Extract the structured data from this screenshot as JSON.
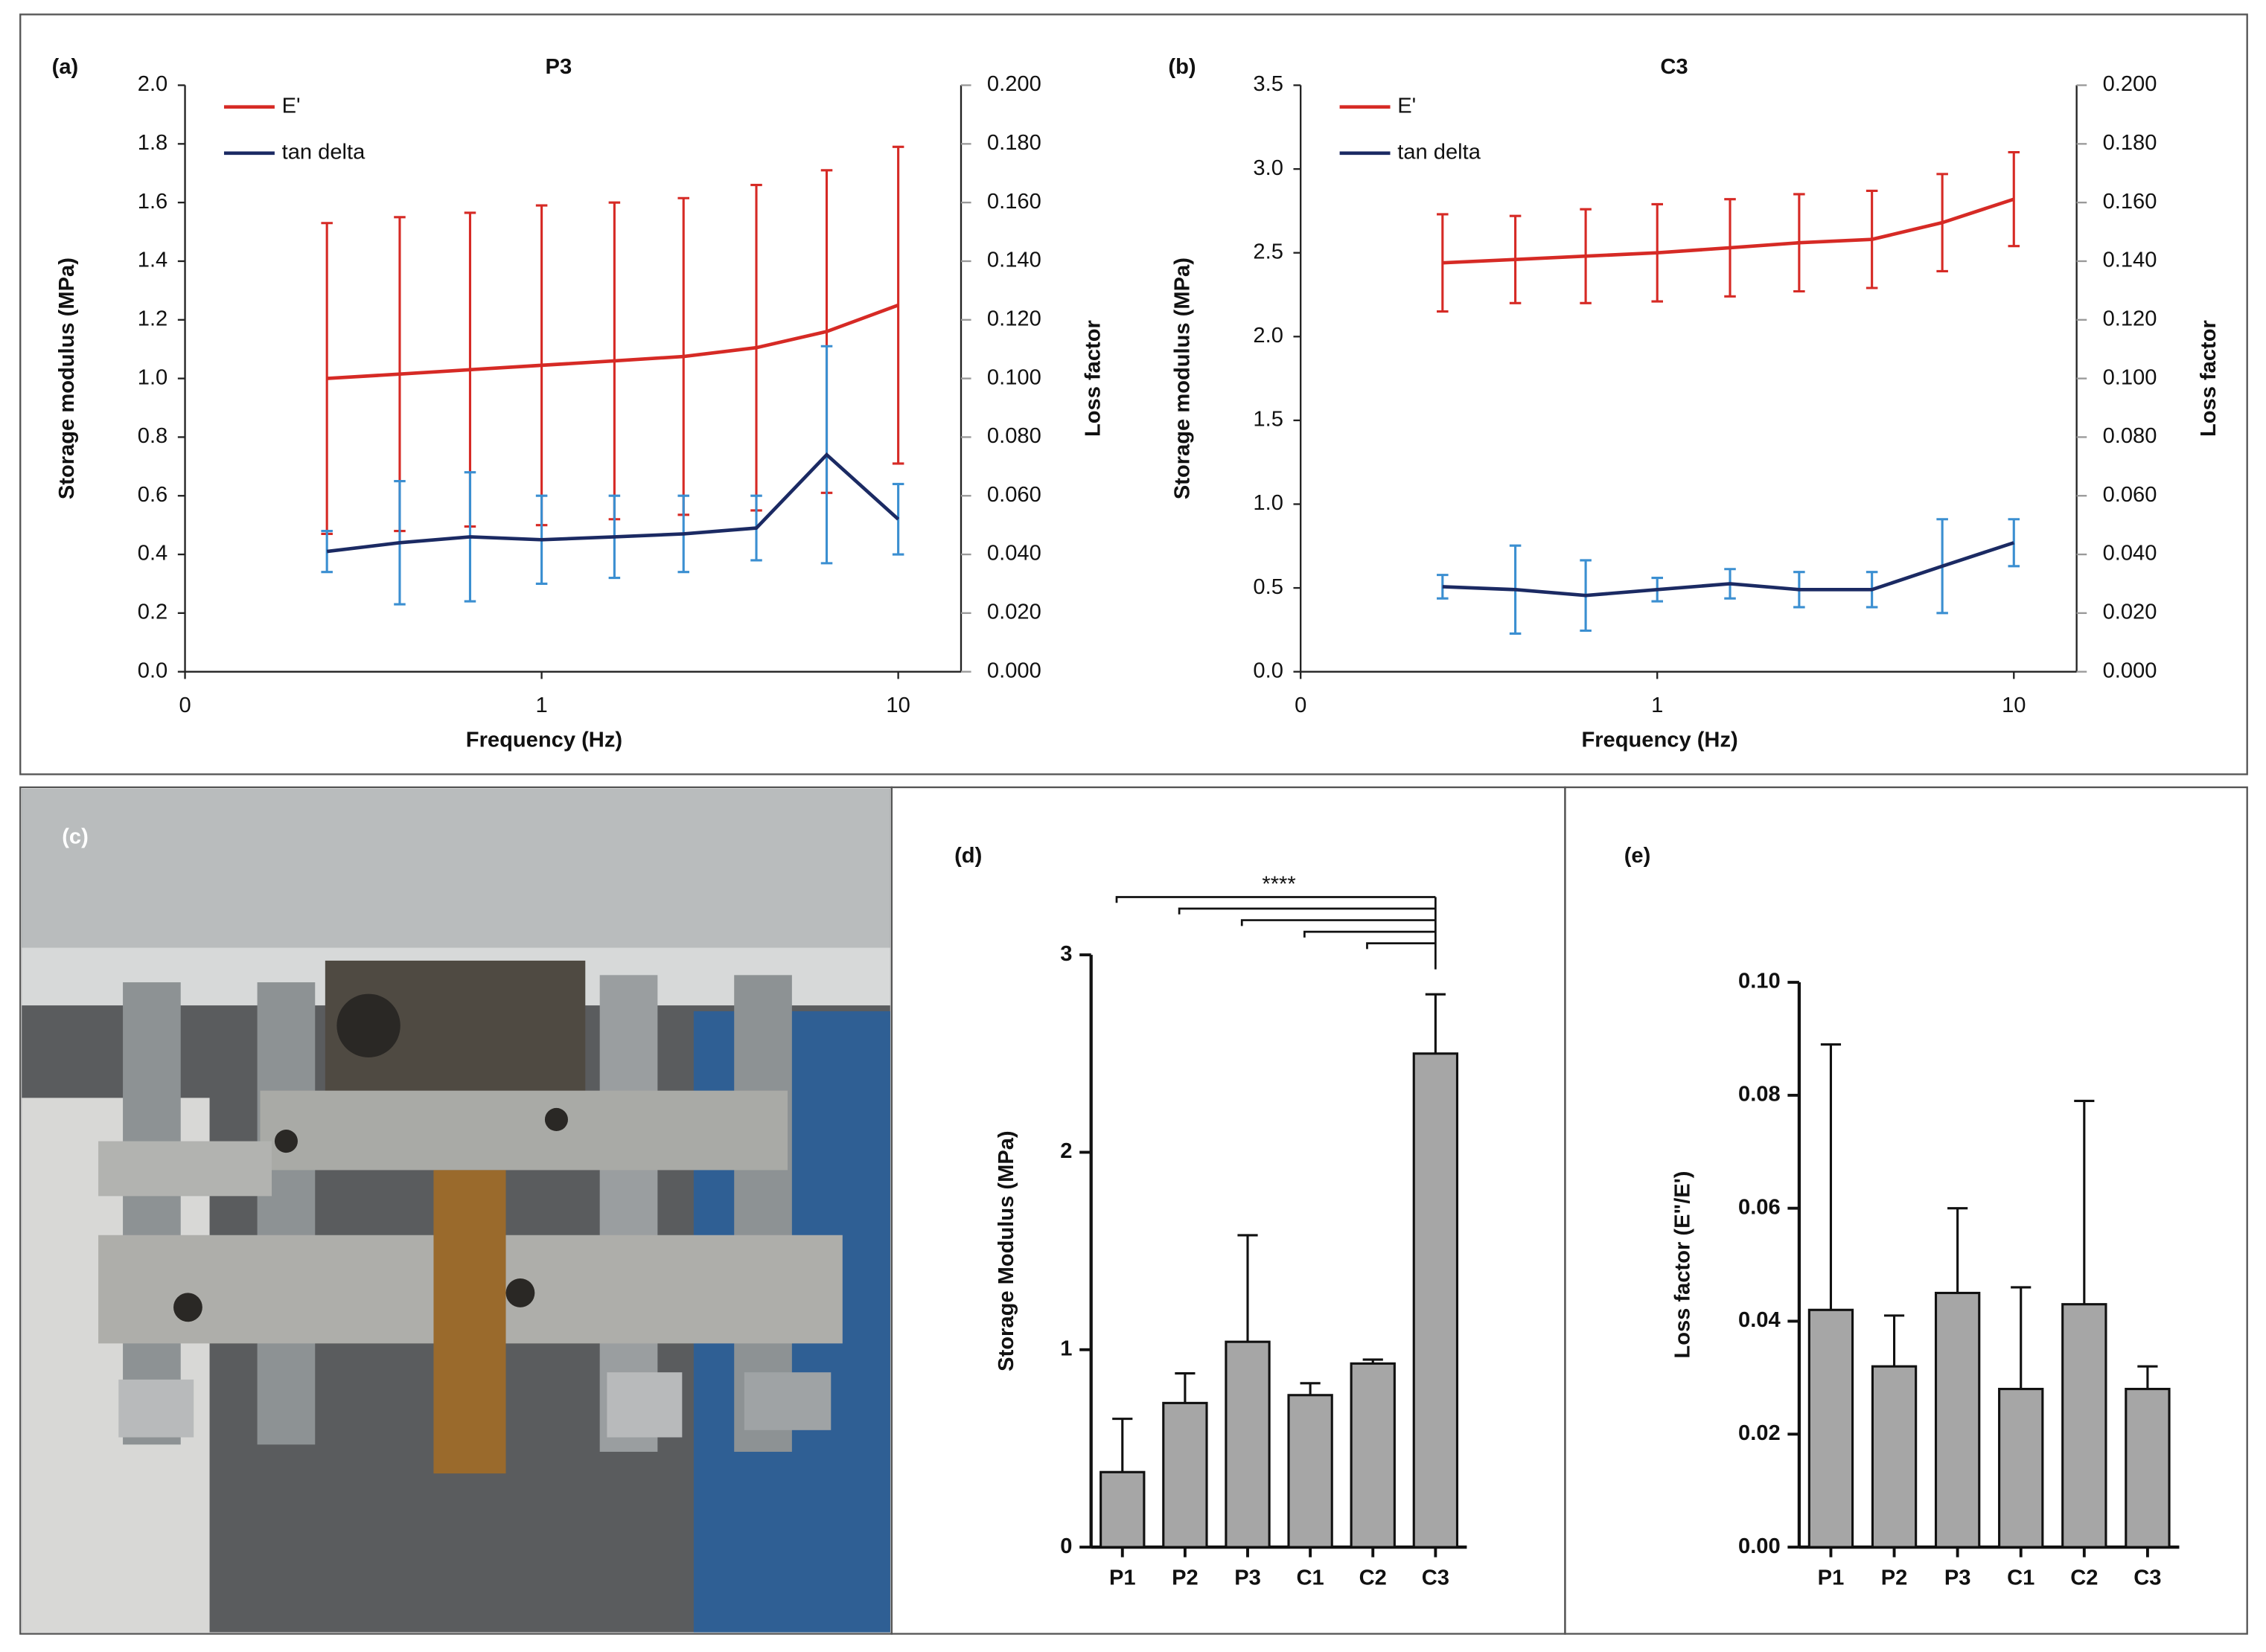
{
  "chart_data": [
    {
      "type": "line",
      "label": "(a)",
      "title": "P3",
      "xlabel": "Frequency (Hz)",
      "ylabel": "Storage modulus (MPa)",
      "y2label": "Loss factor",
      "xscale": "log",
      "legend": "upper left",
      "x": [
        0.25,
        0.4,
        0.63,
        1,
        1.6,
        2.5,
        4,
        6.3,
        10
      ],
      "xlim": [
        0.1,
        15
      ],
      "xticks": [
        {
          "value": 0.1,
          "label": "0"
        },
        1,
        10
      ],
      "ylim": [
        0,
        2
      ],
      "yticks": [
        {
          "value": 0,
          "label": "0.0"
        },
        0.2,
        0.4,
        0.6,
        0.8,
        {
          "value": 1,
          "label": "1.0"
        },
        1.2,
        1.4,
        1.6,
        1.8,
        {
          "value": 2,
          "label": "2.0"
        }
      ],
      "y2lim": [
        0,
        0.2
      ],
      "y2ticks": [
        {
          "value": 0,
          "label": "0.000"
        },
        {
          "value": 0.02,
          "label": "0.020"
        },
        {
          "value": 0.04,
          "label": "0.040"
        },
        {
          "value": 0.06,
          "label": "0.060"
        },
        {
          "value": 0.08,
          "label": "0.080"
        },
        {
          "value": 0.1,
          "label": "0.100"
        },
        {
          "value": 0.12,
          "label": "0.120"
        },
        {
          "value": 0.14,
          "label": "0.140"
        },
        {
          "value": 0.16,
          "label": "0.160"
        },
        {
          "value": 0.18,
          "label": "0.180"
        },
        {
          "value": 0.2,
          "label": "0.200"
        }
      ],
      "series": [
        {
          "name": "E'",
          "color": "#d62a25",
          "error_color": "#d62a25",
          "values": [
            1.0,
            1.015,
            1.03,
            1.045,
            1.06,
            1.075,
            1.105,
            1.16,
            1.25
          ],
          "errors": [
            0.53,
            0.535,
            0.535,
            0.545,
            0.54,
            0.54,
            0.555,
            0.55,
            0.54
          ]
        },
        {
          "name": "tan delta",
          "axis": "y2",
          "color": "#1b2a63",
          "error_color": "#3b8fd1",
          "values": [
            0.041,
            0.044,
            0.046,
            0.045,
            0.046,
            0.047,
            0.049,
            0.074,
            0.052
          ],
          "errors": [
            0.007,
            0.021,
            0.022,
            0.015,
            0.014,
            0.013,
            0.011,
            0.037,
            0.012
          ]
        }
      ]
    },
    {
      "type": "line",
      "label": "(b)",
      "title": "C3",
      "xlabel": "Frequency (Hz)",
      "ylabel": "Storage modulus (MPa)",
      "y2label": "Loss factor",
      "xscale": "log",
      "legend": "upper left",
      "x": [
        0.25,
        0.4,
        0.63,
        1,
        1.6,
        2.5,
        4,
        6.3,
        10
      ],
      "xlim": [
        0.1,
        15
      ],
      "xticks": [
        {
          "value": 0.1,
          "label": "0"
        },
        1,
        10
      ],
      "ylim": [
        0,
        3.5
      ],
      "yticks": [
        {
          "value": 0,
          "label": "0.0"
        },
        0.5,
        {
          "value": 1,
          "label": "1.0"
        },
        1.5,
        {
          "value": 2,
          "label": "2.0"
        },
        2.5,
        {
          "value": 3,
          "label": "3.0"
        },
        3.5
      ],
      "y2lim": [
        0,
        0.2
      ],
      "y2ticks": [
        {
          "value": 0,
          "label": "0.000"
        },
        {
          "value": 0.02,
          "label": "0.020"
        },
        {
          "value": 0.04,
          "label": "0.040"
        },
        {
          "value": 0.06,
          "label": "0.060"
        },
        {
          "value": 0.08,
          "label": "0.080"
        },
        {
          "value": 0.1,
          "label": "0.100"
        },
        {
          "value": 0.12,
          "label": "0.120"
        },
        {
          "value": 0.14,
          "label": "0.140"
        },
        {
          "value": 0.16,
          "label": "0.160"
        },
        {
          "value": 0.18,
          "label": "0.180"
        },
        {
          "value": 0.2,
          "label": "0.200"
        }
      ],
      "series": [
        {
          "name": "E'",
          "color": "#d62a25",
          "error_color": "#d62a25",
          "values": [
            2.44,
            2.46,
            2.48,
            2.5,
            2.53,
            2.56,
            2.58,
            2.68,
            2.82
          ],
          "errors": [
            0.29,
            0.26,
            0.28,
            0.29,
            0.29,
            0.29,
            0.29,
            0.29,
            0.28
          ]
        },
        {
          "name": "tan delta",
          "axis": "y2",
          "color": "#1b2a63",
          "error_color": "#3b8fd1",
          "values": [
            0.029,
            0.028,
            0.026,
            0.028,
            0.03,
            0.028,
            0.028,
            0.036,
            0.044
          ],
          "errors": [
            0.004,
            0.015,
            0.012,
            0.004,
            0.005,
            0.006,
            0.006,
            0.016,
            0.008
          ]
        }
      ]
    },
    {
      "type": "photo",
      "label": "(c)"
    },
    {
      "type": "bar",
      "label": "(d)",
      "ylabel": "Storage Modulus (MPa)",
      "annotation": "****",
      "categories": [
        "P1",
        "P2",
        "P3",
        "C1",
        "C2",
        "C3"
      ],
      "values": [
        0.38,
        0.73,
        1.04,
        0.77,
        0.93,
        2.5
      ],
      "errors": [
        0.27,
        0.15,
        0.54,
        0.06,
        0.02,
        0.3
      ],
      "color": "#a6a6a6",
      "ylim": [
        0,
        3
      ],
      "yticks": [
        0,
        1,
        2,
        3
      ]
    },
    {
      "type": "bar",
      "label": "(e)",
      "ylabel": "Loss factor (E\"/E')",
      "categories": [
        "P1",
        "P2",
        "P3",
        "C1",
        "C2",
        "C3"
      ],
      "values": [
        0.042,
        0.032,
        0.045,
        0.028,
        0.043,
        0.028
      ],
      "errors": [
        0.047,
        0.009,
        0.015,
        0.018,
        0.036,
        0.004
      ],
      "color": "#a6a6a6",
      "ylim": [
        0,
        0.1
      ],
      "yticks": [
        {
          "value": 0,
          "label": "0.00"
        },
        0.02,
        0.04,
        0.06,
        0.08,
        {
          "value": 0.1,
          "label": "0.10"
        }
      ]
    }
  ]
}
